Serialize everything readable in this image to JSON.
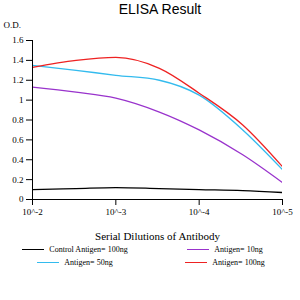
{
  "chart_data": {
    "type": "line",
    "title": "ELISA Result",
    "y_label": "O.D.",
    "x_label": "Serial Dilutions of Antibody",
    "log": "x",
    "grid": false,
    "legend": "bottom",
    "x": [
      0.01,
      0.003,
      0.001,
      0.0003,
      0.0001,
      3e-05,
      1e-05
    ],
    "xlim": [
      0.01,
      1e-05
    ],
    "xticks": [
      {
        "value": 0.01,
        "label": "10^-2"
      },
      {
        "value": 0.001,
        "label": "10^-3"
      },
      {
        "value": 0.0001,
        "label": "10^-4"
      },
      {
        "value": 1e-05,
        "label": "10^-5"
      }
    ],
    "ylim": [
      0,
      1.6
    ],
    "yticks": [
      0,
      0.2,
      0.4,
      0.6,
      0.8,
      1,
      1.2,
      1.4,
      1.6
    ],
    "series": [
      {
        "name": "Control Antigen= 100ng",
        "color": "#000000",
        "values": [
          0.1,
          0.11,
          0.12,
          0.11,
          0.1,
          0.09,
          0.07
        ]
      },
      {
        "name": "Antigen= 10ng",
        "color": "#9933cc",
        "values": [
          1.13,
          1.08,
          1.02,
          0.88,
          0.7,
          0.45,
          0.17
        ]
      },
      {
        "name": "Antigen= 50ng",
        "color": "#33bbee",
        "values": [
          1.35,
          1.3,
          1.25,
          1.2,
          1.05,
          0.7,
          0.3
        ]
      },
      {
        "name": "Antigen= 100ng",
        "color": "#ee2222",
        "values": [
          1.33,
          1.4,
          1.43,
          1.32,
          1.07,
          0.75,
          0.33
        ]
      }
    ]
  }
}
